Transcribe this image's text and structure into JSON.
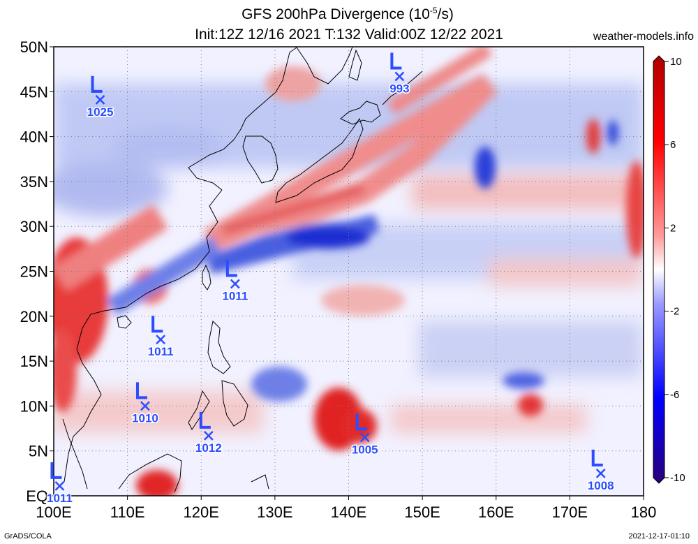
{
  "header": {
    "title_line1": "GFS 200hPa Divergence (10",
    "title_unit_exp": "-5",
    "title_unit_tail": "/s)",
    "title_line2": "Init:12Z 12/16 2021 T:132 Valid:00Z 12/22 2021",
    "site": "weather-models.info"
  },
  "footer": {
    "left": "GrADS/COLA",
    "right": "2021-12-17-01:10"
  },
  "axes": {
    "lat_labels": [
      "EQ",
      "5N",
      "10N",
      "15N",
      "20N",
      "25N",
      "30N",
      "35N",
      "40N",
      "45N",
      "50N"
    ],
    "lat_values": [
      0,
      5,
      10,
      15,
      20,
      25,
      30,
      35,
      40,
      45,
      50
    ],
    "lon_labels": [
      "100E",
      "110E",
      "120E",
      "130E",
      "140E",
      "150E",
      "160E",
      "170E",
      "180"
    ],
    "lon_values": [
      100,
      110,
      120,
      130,
      140,
      150,
      160,
      170,
      180
    ],
    "lon_range": [
      100,
      180
    ],
    "lat_range": [
      0,
      50
    ]
  },
  "colorbar": {
    "labels": [
      "10",
      "6",
      "2",
      "-2",
      "-6",
      "-10"
    ],
    "values": [
      10,
      6,
      2,
      -2,
      -6,
      -10
    ],
    "colors": [
      "#b00000",
      "#ff0000",
      "#ff8a8a",
      "#ffffff",
      "#8a8aff",
      "#0000ff",
      "#2a007a"
    ]
  },
  "lows": [
    {
      "label": "1025",
      "lon": 106.3,
      "lat": 44.1
    },
    {
      "label": "993",
      "lon": 146.9,
      "lat": 46.7
    },
    {
      "label": "1011",
      "lon": 124.6,
      "lat": 23.6
    },
    {
      "label": "1011",
      "lon": 114.5,
      "lat": 17.4
    },
    {
      "label": "1010",
      "lon": 112.4,
      "lat": 10.0
    },
    {
      "label": "1012",
      "lon": 121.0,
      "lat": 6.7
    },
    {
      "label": "1005",
      "lon": 142.2,
      "lat": 6.5
    },
    {
      "label": "1008",
      "lon": 174.2,
      "lat": 2.5
    },
    {
      "label": "1011",
      "lon": 100.8,
      "lat": 1.1
    }
  ],
  "colors": {
    "pressure_marker": "#2a4dff",
    "coast": "#000000",
    "grid": "#7f7f7f"
  }
}
